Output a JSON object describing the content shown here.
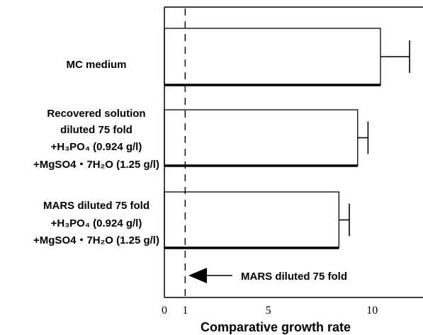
{
  "chart_data": {
    "type": "bar",
    "orientation": "horizontal",
    "xlabel": "Comparative growth rate",
    "xlim": [
      0,
      12.7
    ],
    "xticks": [
      0,
      1,
      5,
      10
    ],
    "grid": false,
    "categories": [
      [
        "MC medium"
      ],
      [
        "Recovered solution",
        "diluted 75 fold",
        "+H₃PO₄ (0.924 g/l)",
        "+MgSO4・7H₂O (1.25 g/l)"
      ],
      [
        "MARS diluted 75 fold",
        "+H₃PO₄ (0.924 g/l)",
        "+MgSO4・7H₂O (1.25 g/l)"
      ]
    ],
    "values": [
      10.4,
      9.3,
      8.4
    ],
    "errors": [
      1.4,
      0.5,
      0.5
    ],
    "reference_line": {
      "value": 1,
      "style": "dashed"
    },
    "annotation": "MARS diluted 75 fold"
  }
}
